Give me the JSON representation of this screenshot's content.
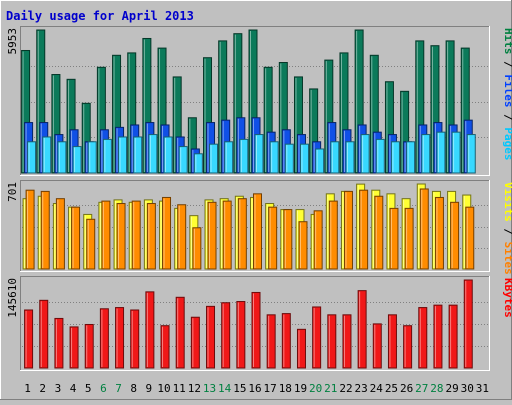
{
  "chart_data": {
    "type": "bar",
    "title": "Daily usage for April 2013",
    "days": [
      "1",
      "2",
      "3",
      "4",
      "5",
      "6",
      "7",
      "8",
      "9",
      "10",
      "11",
      "12",
      "13",
      "14",
      "15",
      "16",
      "17",
      "18",
      "19",
      "20",
      "21",
      "22",
      "23",
      "24",
      "25",
      "26",
      "27",
      "28",
      "29",
      "30",
      "31"
    ],
    "weekend_days": [
      "6",
      "7",
      "13",
      "14",
      "20",
      "21",
      "27",
      "28"
    ],
    "panels": [
      {
        "id": "hits",
        "max_label": "5953",
        "ymax": 5953,
        "legend": [
          {
            "text": "Pages",
            "color": "#00c8ff"
          },
          {
            "text": " / ",
            "color": "#000000"
          },
          {
            "text": "Files",
            "color": "#0040ff"
          },
          {
            "text": " / ",
            "color": "#000000"
          },
          {
            "text": "Hits",
            "color": "#008040"
          }
        ],
        "series": [
          {
            "name": "Hits",
            "color": "#0b7a5a",
            "values": [
              5100,
              6000,
              4100,
              3900,
              2900,
              4400,
              4900,
              5000,
              5600,
              5200,
              4000,
              2300,
              4800,
              5500,
              5800,
              6200,
              4400,
              4600,
              4000,
              3500,
              4700,
              5000,
              6300,
              4900,
              3800,
              3400,
              5500,
              5300,
              5500,
              5200
            ]
          },
          {
            "name": "Files",
            "color": "#1050e6",
            "values": [
              2100,
              2100,
              1600,
              1800,
              1300,
              1800,
              1900,
              2000,
              2100,
              2000,
              1500,
              1000,
              2100,
              2200,
              2300,
              2300,
              1700,
              1800,
              1600,
              1300,
              2100,
              1800,
              2000,
              1700,
              1600,
              1300,
              2000,
              2100,
              2000,
              2200
            ]
          },
          {
            "name": "Pages",
            "color": "#38d8ff",
            "values": [
              1300,
              1500,
              1300,
              1100,
              1300,
              1400,
              1500,
              1500,
              1600,
              1500,
              1100,
              800,
              1200,
              1300,
              1400,
              1600,
              1300,
              1200,
              1200,
              1000,
              1300,
              1300,
              1600,
              1400,
              1300,
              1300,
              1600,
              1700,
              1700,
              1600
            ]
          }
        ]
      },
      {
        "id": "visits",
        "max_label": "701",
        "ymax": 701,
        "legend": [
          {
            "text": "Sites",
            "color": "#ff8000"
          },
          {
            "text": " / ",
            "color": "#000000"
          },
          {
            "text": "Visits",
            "color": "#ffff00"
          }
        ],
        "series": [
          {
            "name": "Visits",
            "color": "#ffff33",
            "values": [
              580,
              600,
              540,
              510,
              450,
              550,
              570,
              550,
              570,
              560,
              500,
              440,
              570,
              580,
              600,
              590,
              540,
              490,
              490,
              450,
              620,
              640,
              700,
              650,
              620,
              580,
              710,
              640,
              640,
              610
            ]
          },
          {
            "name": "Sites",
            "color": "#ff8c00",
            "values": [
              650,
              640,
              580,
              510,
              410,
              560,
              540,
              560,
              540,
              590,
              530,
              340,
              550,
              560,
              580,
              620,
              510,
              490,
              390,
              480,
              560,
              640,
              650,
              600,
              500,
              500,
              660,
              590,
              550,
              510
            ]
          }
        ]
      },
      {
        "id": "kbytes",
        "max_label": "145610",
        "ymax": 145610,
        "legend": [
          {
            "text": "KBytes",
            "color": "#ff0000"
          }
        ],
        "series": [
          {
            "name": "KBytes",
            "color": "#f01818",
            "values": [
              96000,
              112000,
              82000,
              68000,
              72000,
              98000,
              100000,
              96000,
              126000,
              70000,
              117000,
              84000,
              102000,
              108000,
              110000,
              125000,
              88000,
              90000,
              64000,
              101000,
              88000,
              88000,
              128000,
              73000,
              88000,
              70000,
              100000,
              104000,
              104000,
              146000
            ]
          }
        ]
      }
    ]
  }
}
